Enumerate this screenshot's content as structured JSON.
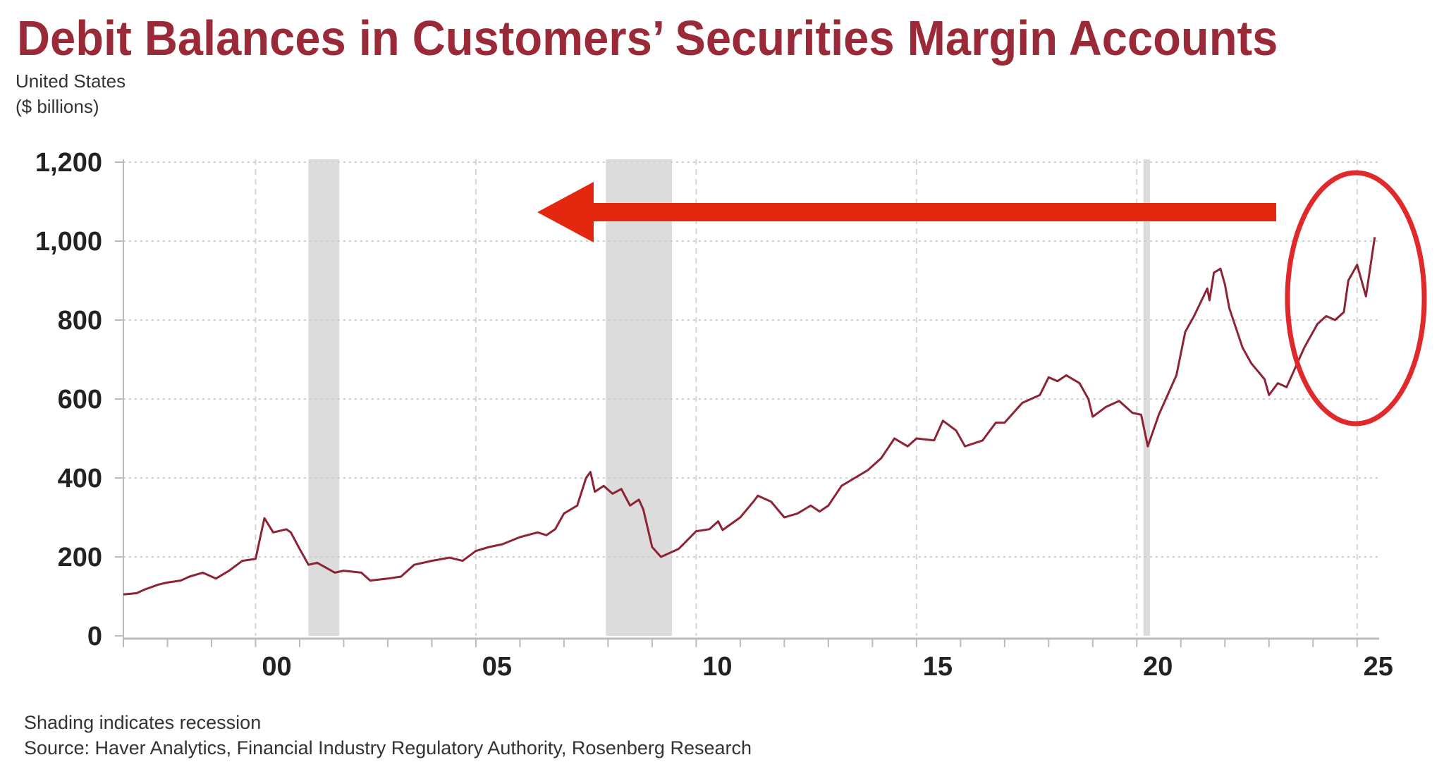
{
  "title": "Debit Balances in Customers’ Securities Margin Accounts",
  "subtitle": [
    "United States",
    "($ billions)"
  ],
  "footer": {
    "note": "Shading indicates recession",
    "source": "Source: Haver Analytics, Financial Industry Regulatory Authority, Rosenberg Research"
  },
  "colors": {
    "title": "#9a2a37",
    "line": "#8c2435",
    "recession": "#dcdcdc",
    "annotation": "#e4280f"
  },
  "annotations": [
    {
      "type": "arrow",
      "direction": "left",
      "icon": "red-arrow-left"
    },
    {
      "type": "ellipse",
      "icon": "red-circle-highlight",
      "around": "latest values"
    }
  ],
  "chart_data": {
    "type": "line",
    "title": "Debit Balances in Customers’ Securities Margin Accounts",
    "xlabel": "",
    "ylabel": "",
    "xlim": [
      1997.0,
      2025.5
    ],
    "ylim": [
      0,
      1200
    ],
    "grid": true,
    "yticks": [
      0,
      200,
      400,
      600,
      800,
      1000,
      1200
    ],
    "ytick_labels": [
      "0",
      "200",
      "400",
      "600",
      "800",
      "1,000",
      "1,200"
    ],
    "xticks": [
      2000,
      2005,
      2010,
      2015,
      2020,
      2025
    ],
    "xtick_labels": [
      "00",
      "05",
      "10",
      "15",
      "20",
      "25"
    ],
    "recessions": [
      [
        2001.2,
        2001.9
      ],
      [
        2007.95,
        2009.45
      ],
      [
        2020.15,
        2020.3
      ]
    ],
    "series": [
      {
        "x": [
          1997.0,
          1997.3,
          1997.5,
          1997.8,
          1998.0,
          1998.3,
          1998.5,
          1998.8,
          1999.1,
          1999.4,
          1999.7,
          2000.0,
          2000.2,
          2000.4,
          2000.7,
          2000.8,
          2001.0,
          2001.2,
          2001.4,
          2001.8,
          2002.0,
          2002.4,
          2002.6,
          2003.0,
          2003.3,
          2003.6,
          2004.0,
          2004.4,
          2004.7,
          2005.0,
          2005.3,
          2005.6,
          2006.0,
          2006.4,
          2006.6,
          2006.8,
          2007.0,
          2007.3,
          2007.5,
          2007.6,
          2007.7,
          2007.9,
          2008.1,
          2008.3,
          2008.5,
          2008.7,
          2008.8,
          2009.0,
          2009.2,
          2009.6,
          2010.0,
          2010.3,
          2010.5,
          2010.6,
          2011.0,
          2011.3,
          2011.4,
          2011.7,
          2012.0,
          2012.3,
          2012.6,
          2012.8,
          2013.0,
          2013.3,
          2013.6,
          2013.9,
          2014.2,
          2014.5,
          2014.8,
          2015.0,
          2015.4,
          2015.6,
          2015.9,
          2016.1,
          2016.5,
          2016.8,
          2017.0,
          2017.4,
          2017.8,
          2018.0,
          2018.2,
          2018.4,
          2018.7,
          2018.9,
          2019.0,
          2019.3,
          2019.6,
          2019.9,
          2020.1,
          2020.25,
          2020.5,
          2020.9,
          2021.1,
          2021.3,
          2021.6,
          2021.65,
          2021.75,
          2021.9,
          2022.0,
          2022.1,
          2022.4,
          2022.6,
          2022.9,
          2023.0,
          2023.2,
          2023.4,
          2023.6,
          2023.8,
          2024.1,
          2024.3,
          2024.5,
          2024.7,
          2024.8,
          2025.0,
          2025.2,
          2025.4
        ],
        "values": [
          105,
          108,
          118,
          130,
          135,
          140,
          150,
          160,
          145,
          165,
          190,
          195,
          298,
          262,
          270,
          262,
          220,
          180,
          185,
          160,
          165,
          160,
          140,
          145,
          150,
          180,
          190,
          198,
          190,
          215,
          225,
          232,
          250,
          262,
          255,
          270,
          310,
          330,
          400,
          415,
          365,
          380,
          360,
          372,
          330,
          345,
          320,
          225,
          200,
          220,
          265,
          270,
          290,
          268,
          300,
          340,
          355,
          340,
          300,
          310,
          330,
          315,
          330,
          380,
          400,
          420,
          450,
          500,
          480,
          500,
          495,
          545,
          520,
          480,
          495,
          540,
          540,
          590,
          610,
          655,
          645,
          660,
          640,
          600,
          555,
          580,
          595,
          565,
          560,
          480,
          560,
          660,
          770,
          810,
          880,
          850,
          920,
          930,
          890,
          830,
          730,
          690,
          650,
          610,
          640,
          630,
          680,
          730,
          790,
          810,
          800,
          820,
          900,
          940,
          860,
          1010
        ]
      }
    ]
  }
}
